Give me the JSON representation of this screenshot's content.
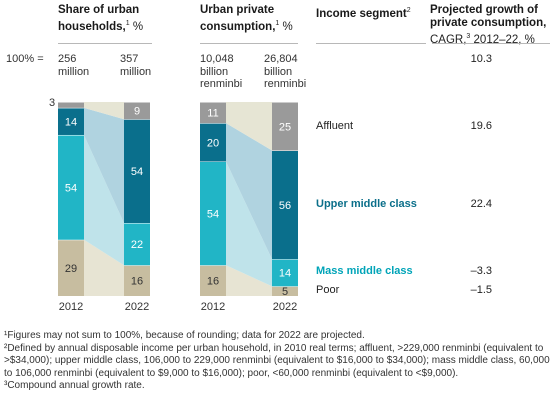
{
  "headers": {
    "households": {
      "bold": "Share of urban households,",
      "sup": "1",
      "rest": " %"
    },
    "consumption": {
      "bold": "Urban private consumption,",
      "sup": "1",
      "rest": " %"
    },
    "segment": {
      "bold": "Income segment",
      "sup": "2",
      "rest": ""
    },
    "growth": {
      "bold": "Projected growth of private consumption,",
      "rest": "CAGR,",
      "sup": "3",
      "rest2": " 2012–22, %"
    }
  },
  "totals": {
    "label": "100% =",
    "households_2012": "256\nmillion",
    "households_2022": "357\nmillion",
    "consumption_2012": "10,048\nbillion\nrenminbi",
    "consumption_2022": "26,804\nbillion\nrenminbi",
    "growth_total": "10.3"
  },
  "segments": [
    {
      "name": "Affluent",
      "style": "plain",
      "growth": "19.6"
    },
    {
      "name": "Upper middle class",
      "style": "bold-dark",
      "growth": "22.4"
    },
    {
      "name": "Mass middle class",
      "style": "bold",
      "growth": "–3.3"
    },
    {
      "name": "Poor",
      "style": "plain",
      "growth": "–1.5"
    }
  ],
  "chart_data": {
    "type": "bar",
    "stacked": true,
    "categories": [
      "2012",
      "2022"
    ],
    "charts": [
      {
        "title": "Share of urban households, %",
        "series": [
          {
            "name": "Poor",
            "values": [
              29,
              16
            ]
          },
          {
            "name": "Mass middle class",
            "values": [
              54,
              22
            ]
          },
          {
            "name": "Upper middle class",
            "values": [
              14,
              54
            ]
          },
          {
            "name": "Affluent",
            "values": [
              3,
              9
            ]
          }
        ]
      },
      {
        "title": "Urban private consumption, %",
        "series": [
          {
            "name": "Poor",
            "values": [
              16,
              5
            ]
          },
          {
            "name": "Mass middle class",
            "values": [
              54,
              14
            ]
          },
          {
            "name": "Upper middle class",
            "values": [
              20,
              56
            ]
          },
          {
            "name": "Affluent",
            "values": [
              11,
              25
            ]
          }
        ]
      }
    ],
    "colors": {
      "Poor": "#c7bda0",
      "Mass middle class": "#21b5c6",
      "Upper middle class": "#0a6f8c",
      "Affluent": "#9a9a9a",
      "band_Poor": "#e7e4d3",
      "band_Mass middle class": "#bfe3ea",
      "band_Upper middle class": "#b0d3e0",
      "band_Affluent": "#e6e5d4"
    }
  },
  "footnotes": [
    "¹Figures may not sum to 100%, because of rounding; data for 2022 are projected.",
    "²Defined by annual disposable income per urban household, in 2010 real terms; affluent, >229,000 renminbi (equivalent to >$34,000); upper middle class, 106,000 to 229,000 renminbi (equivalent to $16,000 to $34,000); mass middle class, 60,000 to 106,000 renminbi (equivalent to $9,000 to $16,000); poor, <60,000 renminbi (equivalent to <$9,000).",
    "³Compound annual growth rate."
  ]
}
